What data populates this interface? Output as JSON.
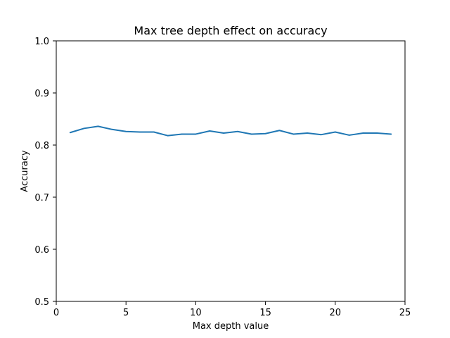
{
  "chart_data": {
    "type": "line",
    "title": "Max tree depth effect on accuracy",
    "xlabel": "Max depth value",
    "ylabel": "Accuracy",
    "xlim": [
      0,
      25
    ],
    "ylim": [
      0.5,
      1.0
    ],
    "x_ticks": [
      "0",
      "5",
      "10",
      "15",
      "20",
      "25"
    ],
    "x_tick_values": [
      0,
      5,
      10,
      15,
      20,
      25
    ],
    "y_ticks": [
      "0.5",
      "0.6",
      "0.7",
      "0.8",
      "0.9",
      "1.0"
    ],
    "y_tick_values": [
      0.5,
      0.6,
      0.7,
      0.8,
      0.9,
      1.0
    ],
    "grid": false,
    "legend": "none",
    "series": [
      {
        "color": "#1f77b4",
        "x": [
          1,
          2,
          3,
          4,
          5,
          6,
          7,
          8,
          9,
          10,
          11,
          12,
          13,
          14,
          15,
          16,
          17,
          18,
          19,
          20,
          21,
          22,
          23,
          24
        ],
        "values": [
          0.824,
          0.832,
          0.836,
          0.83,
          0.826,
          0.825,
          0.825,
          0.818,
          0.821,
          0.821,
          0.827,
          0.823,
          0.826,
          0.821,
          0.822,
          0.828,
          0.821,
          0.823,
          0.82,
          0.825,
          0.819,
          0.823,
          0.823,
          0.821
        ]
      }
    ]
  }
}
